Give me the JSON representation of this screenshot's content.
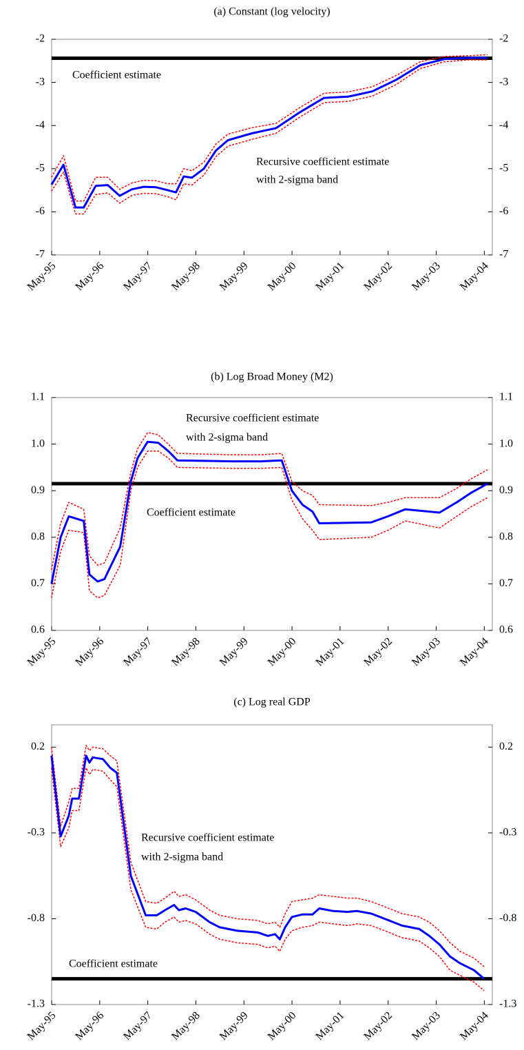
{
  "chart_data": [
    {
      "type": "line",
      "title": "(a) Constant (log velocity)",
      "x": [
        1995.33,
        1995.58,
        1995.83,
        1996.0,
        1996.25,
        1996.5,
        1996.75,
        1997.0,
        1997.25,
        1997.5,
        1997.75,
        1997.92,
        1998.08,
        1998.25,
        1998.5,
        1998.75,
        1999.0,
        1999.5,
        2000.0,
        2000.5,
        2001.0,
        2001.5,
        2002.0,
        2002.5,
        2003.0,
        2003.5,
        2004.0,
        2004.4
      ],
      "series": [
        {
          "color": "#ff0000",
          "dashed": true,
          "values": [
            -5.2,
            -4.7,
            -5.75,
            -5.75,
            -5.2,
            -5.2,
            -5.48,
            -5.33,
            -5.27,
            -5.28,
            -5.35,
            -5.35,
            -5.0,
            -5.05,
            -4.85,
            -4.43,
            -4.2,
            -4.05,
            -3.95,
            -3.58,
            -3.25,
            -3.22,
            -3.1,
            -2.84,
            -2.52,
            -2.4,
            -2.38,
            -2.36
          ]
        },
        {
          "color": "#ff0000",
          "dashed": true,
          "values": [
            -5.52,
            -5.08,
            -6.05,
            -6.05,
            -5.6,
            -5.56,
            -5.8,
            -5.62,
            -5.57,
            -5.58,
            -5.65,
            -5.72,
            -5.35,
            -5.38,
            -5.15,
            -4.72,
            -4.48,
            -4.32,
            -4.18,
            -3.8,
            -3.47,
            -3.44,
            -3.32,
            -3.05,
            -2.68,
            -2.52,
            -2.48,
            -2.48
          ]
        },
        {
          "color": "#0000ff",
          "dashed": false,
          "values": [
            -5.37,
            -4.91,
            -5.9,
            -5.9,
            -5.4,
            -5.38,
            -5.63,
            -5.48,
            -5.42,
            -5.43,
            -5.5,
            -5.55,
            -5.18,
            -5.21,
            -5.0,
            -4.58,
            -4.34,
            -4.18,
            -4.06,
            -3.69,
            -3.36,
            -3.33,
            -3.21,
            -2.94,
            -2.6,
            -2.46,
            -2.43,
            -2.43
          ]
        }
      ],
      "reference": {
        "value": -2.44,
        "color": "#000000"
      },
      "annotations": [
        "Coefficient estimate",
        "Recursive coefficient estimate",
        "with 2-sigma band"
      ],
      "xlim": [
        1995.333,
        2004.5
      ],
      "xticks": [
        {
          "value": 1995.333,
          "label": "May-95"
        },
        {
          "value": 1996.333,
          "label": "May-96"
        },
        {
          "value": 1997.333,
          "label": "May-97"
        },
        {
          "value": 1998.333,
          "label": "May-98"
        },
        {
          "value": 1999.333,
          "label": "May-99"
        },
        {
          "value": 2000.333,
          "label": "May-00"
        },
        {
          "value": 2001.333,
          "label": "May-01"
        },
        {
          "value": 2002.333,
          "label": "May-02"
        },
        {
          "value": 2003.333,
          "label": "May-03"
        },
        {
          "value": 2004.333,
          "label": "May-04"
        }
      ],
      "ylim": [
        -7,
        -2
      ],
      "yticks": [
        -2,
        -3,
        -4,
        -5,
        -6,
        -7
      ]
    },
    {
      "type": "line",
      "title": "(b) Log Broad Money (M2)",
      "x": [
        1995.33,
        1995.52,
        1995.69,
        1996.0,
        1996.12,
        1996.29,
        1996.43,
        1996.76,
        1996.98,
        1997.12,
        1997.33,
        1997.55,
        1997.76,
        1997.95,
        1999.12,
        1999.69,
        2000.12,
        2000.33,
        2000.55,
        2000.76,
        2000.9,
        2001.98,
        2002.33,
        2002.69,
        2003.4,
        2003.76,
        2004.05,
        2004.4
      ],
      "series": [
        {
          "color": "#ff0000",
          "dashed": true,
          "values": [
            0.73,
            0.83,
            0.875,
            0.86,
            0.76,
            0.74,
            0.745,
            0.82,
            0.94,
            0.99,
            1.025,
            1.02,
            1.0,
            0.98,
            0.977,
            0.977,
            0.98,
            0.92,
            0.9,
            0.89,
            0.87,
            0.868,
            0.875,
            0.885,
            0.885,
            0.905,
            0.925,
            0.945
          ]
        },
        {
          "color": "#ff0000",
          "dashed": true,
          "values": [
            0.67,
            0.77,
            0.815,
            0.81,
            0.685,
            0.67,
            0.675,
            0.74,
            0.9,
            0.95,
            0.985,
            0.985,
            0.97,
            0.95,
            0.948,
            0.948,
            0.95,
            0.88,
            0.84,
            0.815,
            0.795,
            0.8,
            0.815,
            0.835,
            0.82,
            0.845,
            0.865,
            0.885
          ]
        },
        {
          "color": "#0000ff",
          "dashed": false,
          "values": [
            0.7,
            0.8,
            0.845,
            0.835,
            0.72,
            0.705,
            0.71,
            0.78,
            0.92,
            0.97,
            1.005,
            1.003,
            0.985,
            0.965,
            0.963,
            0.963,
            0.965,
            0.9,
            0.87,
            0.855,
            0.83,
            0.832,
            0.845,
            0.86,
            0.853,
            0.875,
            0.895,
            0.915
          ]
        }
      ],
      "reference": {
        "value": 0.915,
        "color": "#000000"
      },
      "annotations": [
        "Coefficient estimate",
        "Recursive coefficient estimate",
        "with 2-sigma band"
      ],
      "xlim": [
        1995.333,
        2004.5
      ],
      "xticks": [
        {
          "value": 1995.333,
          "label": "May-95"
        },
        {
          "value": 1996.333,
          "label": "May-96"
        },
        {
          "value": 1997.333,
          "label": "May-97"
        },
        {
          "value": 1998.333,
          "label": "May-98"
        },
        {
          "value": 1999.333,
          "label": "May-99"
        },
        {
          "value": 2000.333,
          "label": "May-00"
        },
        {
          "value": 2001.333,
          "label": "May-01"
        },
        {
          "value": 2002.333,
          "label": "May-02"
        },
        {
          "value": 2003.333,
          "label": "May-03"
        },
        {
          "value": 2004.333,
          "label": "May-04"
        }
      ],
      "ylim": [
        0.6,
        1.1
      ],
      "yticks": [
        1.1,
        {
          "value": 1,
          "label": "1.0"
        },
        0.9,
        0.8,
        0.7,
        0.6
      ]
    },
    {
      "type": "line",
      "title": "(c) Log real GDP",
      "x": [
        1995.33,
        1995.52,
        1995.69,
        1995.76,
        1995.9,
        1996.05,
        1996.12,
        1996.19,
        1996.4,
        1996.55,
        1996.69,
        1996.98,
        1997.29,
        1997.52,
        1997.69,
        1997.88,
        1997.98,
        1998.12,
        1998.33,
        1998.62,
        1998.83,
        1999.19,
        1999.62,
        1999.83,
        1999.98,
        2000.08,
        2000.19,
        2000.33,
        2000.55,
        2000.76,
        2000.9,
        2001.19,
        2001.48,
        2001.69,
        2001.98,
        2002.26,
        2002.62,
        2002.98,
        2003.19,
        2003.4,
        2003.62,
        2003.83,
        2004.12,
        2004.33
      ],
      "series": [
        {
          "color": "#ff0000",
          "dashed": true,
          "values": [
            0.2,
            -0.26,
            -0.12,
            -0.04,
            -0.04,
            0.21,
            0.18,
            0.2,
            0.19,
            0.15,
            0.12,
            -0.47,
            -0.7,
            -0.71,
            -0.68,
            -0.64,
            -0.67,
            -0.66,
            -0.69,
            -0.75,
            -0.78,
            -0.8,
            -0.81,
            -0.83,
            -0.82,
            -0.85,
            -0.77,
            -0.7,
            -0.69,
            -0.68,
            -0.66,
            -0.67,
            -0.68,
            -0.68,
            -0.7,
            -0.73,
            -0.77,
            -0.79,
            -0.82,
            -0.87,
            -0.94,
            -0.99,
            -1.03,
            -1.08
          ]
        },
        {
          "color": "#ff0000",
          "dashed": true,
          "values": [
            0.08,
            -0.38,
            -0.27,
            -0.17,
            -0.17,
            0.08,
            0.04,
            0.07,
            0.06,
            0.01,
            -0.03,
            -0.63,
            -0.85,
            -0.86,
            -0.82,
            -0.79,
            -0.82,
            -0.81,
            -0.83,
            -0.89,
            -0.92,
            -0.94,
            -0.95,
            -0.97,
            -0.96,
            -0.99,
            -0.92,
            -0.87,
            -0.85,
            -0.84,
            -0.82,
            -0.83,
            -0.84,
            -0.83,
            -0.84,
            -0.87,
            -0.91,
            -0.93,
            -0.97,
            -1.02,
            -1.1,
            -1.13,
            -1.17,
            -1.22
          ]
        },
        {
          "color": "#0000ff",
          "dashed": false,
          "values": [
            0.15,
            -0.32,
            -0.2,
            -0.1,
            -0.1,
            0.15,
            0.11,
            0.14,
            0.13,
            0.08,
            0.05,
            -0.55,
            -0.78,
            -0.78,
            -0.75,
            -0.72,
            -0.75,
            -0.74,
            -0.76,
            -0.82,
            -0.85,
            -0.87,
            -0.88,
            -0.9,
            -0.89,
            -0.92,
            -0.85,
            -0.79,
            -0.775,
            -0.775,
            -0.74,
            -0.755,
            -0.76,
            -0.755,
            -0.77,
            -0.8,
            -0.84,
            -0.86,
            -0.9,
            -0.95,
            -1.02,
            -1.06,
            -1.1,
            -1.15
          ]
        }
      ],
      "reference": {
        "value": -1.15,
        "color": "#000000"
      },
      "annotations": [
        "Coefficient estimate",
        "Recursive coefficient estimate",
        "with 2-sigma band"
      ],
      "xlim": [
        1995.333,
        2004.5
      ],
      "xticks": [
        {
          "value": 1995.333,
          "label": "May-95"
        },
        {
          "value": 1996.333,
          "label": "May-96"
        },
        {
          "value": 1997.333,
          "label": "May-97"
        },
        {
          "value": 1998.333,
          "label": "May-98"
        },
        {
          "value": 1999.333,
          "label": "May-99"
        },
        {
          "value": 2000.333,
          "label": "May-00"
        },
        {
          "value": 2001.333,
          "label": "May-01"
        },
        {
          "value": 2002.333,
          "label": "May-02"
        },
        {
          "value": 2003.333,
          "label": "May-03"
        },
        {
          "value": 2004.333,
          "label": "May-04"
        }
      ],
      "ylim": [
        -1.3,
        0.33
      ],
      "yticks": [
        0.2,
        -0.3,
        -0.8,
        -1.3
      ]
    }
  ]
}
